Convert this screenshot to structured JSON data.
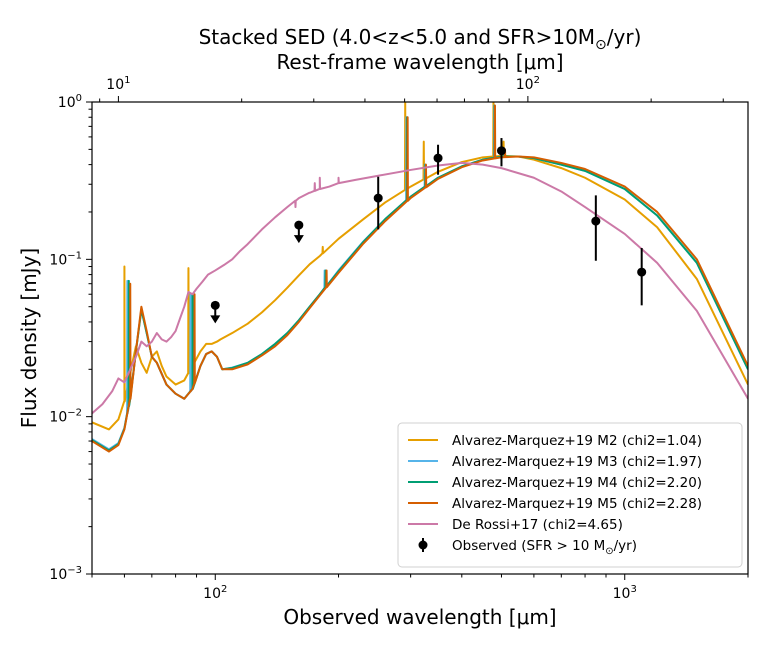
{
  "chart_data": {
    "type": "line",
    "title": "Stacked SED (4.0<z<5.0 and SFR>10M",
    "title_sub": "⊙",
    "title_end": "/yr)",
    "top_xlabel": "Rest-frame wavelength [μm]",
    "xlabel": "Observed wavelength [μm]",
    "ylabel": "Flux density [mJy]",
    "xscale": "log",
    "yscale": "log",
    "xlim": [
      50,
      2000
    ],
    "ylim": [
      0.001,
      1
    ],
    "top_xlim": [
      8.62,
      344.8
    ],
    "x_ticks": [
      {
        "value": 100,
        "base": "10",
        "exp": "2"
      },
      {
        "value": 1000,
        "base": "10",
        "exp": "3"
      }
    ],
    "top_ticks": [
      {
        "value": 10,
        "base": "10",
        "exp": "1"
      },
      {
        "value": 100,
        "base": "10",
        "exp": "2"
      }
    ],
    "y_ticks": [
      {
        "value": 0.001,
        "base": "10",
        "exp": "−3"
      },
      {
        "value": 0.01,
        "base": "10",
        "exp": "−2"
      },
      {
        "value": 0.1,
        "base": "10",
        "exp": "−1"
      },
      {
        "value": 1,
        "base": "10",
        "exp": "0"
      }
    ],
    "legend_position": "lower-right",
    "series": [
      {
        "name": "Alvarez-Marquez+19 M2 (chi2=1.04)",
        "color": "#E69F00",
        "points": [
          [
            50,
            0.0092
          ],
          [
            55,
            0.0083
          ],
          [
            58,
            0.0096
          ],
          [
            60,
            0.0125
          ],
          [
            62,
            0.019
          ],
          [
            64,
            0.028
          ],
          [
            66,
            0.022
          ],
          [
            68,
            0.019
          ],
          [
            70,
            0.024
          ],
          [
            72,
            0.026
          ],
          [
            74,
            0.021
          ],
          [
            76,
            0.018
          ],
          [
            80,
            0.016
          ],
          [
            84,
            0.017
          ],
          [
            88,
            0.021
          ],
          [
            92,
            0.026
          ],
          [
            95,
            0.029
          ],
          [
            98,
            0.029
          ],
          [
            101,
            0.03
          ],
          [
            103,
            0.031
          ],
          [
            110,
            0.034
          ],
          [
            120,
            0.039
          ],
          [
            130,
            0.046
          ],
          [
            140,
            0.055
          ],
          [
            150,
            0.066
          ],
          [
            160,
            0.079
          ],
          [
            170,
            0.093
          ],
          [
            180,
            0.105
          ],
          [
            200,
            0.135
          ],
          [
            230,
            0.18
          ],
          [
            260,
            0.23
          ],
          [
            300,
            0.29
          ],
          [
            350,
            0.36
          ],
          [
            400,
            0.415
          ],
          [
            450,
            0.445
          ],
          [
            500,
            0.455
          ],
          [
            550,
            0.45
          ],
          [
            600,
            0.43
          ],
          [
            700,
            0.38
          ],
          [
            800,
            0.33
          ],
          [
            1000,
            0.24
          ],
          [
            1200,
            0.16
          ],
          [
            1500,
            0.075
          ],
          [
            2000,
            0.016
          ]
        ],
        "spikes": [
          [
            60,
            0.09
          ],
          [
            86,
            0.088
          ],
          [
            183,
            0.12
          ],
          [
            291,
            1.0
          ],
          [
            323,
            0.56
          ],
          [
            478,
            1.0
          ],
          [
            506,
            0.56
          ]
        ]
      },
      {
        "name": "Alvarez-Marquez+19 M3 (chi2=1.97)",
        "color": "#56B4E9",
        "points": [
          [
            50,
            0.0072
          ],
          [
            55,
            0.0062
          ],
          [
            58,
            0.0068
          ],
          [
            60,
            0.0085
          ],
          [
            62,
            0.013
          ],
          [
            64,
            0.026
          ],
          [
            66,
            0.048
          ],
          [
            68,
            0.034
          ],
          [
            70,
            0.024
          ],
          [
            72,
            0.022
          ],
          [
            76,
            0.016
          ],
          [
            80,
            0.014
          ],
          [
            84,
            0.013
          ],
          [
            88,
            0.015
          ],
          [
            92,
            0.021
          ],
          [
            95,
            0.025
          ],
          [
            98,
            0.026
          ],
          [
            101,
            0.024
          ],
          [
            104,
            0.02
          ],
          [
            110,
            0.0205
          ],
          [
            120,
            0.022
          ],
          [
            130,
            0.025
          ],
          [
            140,
            0.029
          ],
          [
            150,
            0.034
          ],
          [
            160,
            0.041
          ],
          [
            170,
            0.05
          ],
          [
            180,
            0.06
          ],
          [
            200,
            0.085
          ],
          [
            230,
            0.13
          ],
          [
            260,
            0.18
          ],
          [
            300,
            0.25
          ],
          [
            350,
            0.33
          ],
          [
            400,
            0.39
          ],
          [
            450,
            0.43
          ],
          [
            500,
            0.45
          ],
          [
            550,
            0.45
          ],
          [
            600,
            0.44
          ],
          [
            700,
            0.4
          ],
          [
            800,
            0.365
          ],
          [
            1000,
            0.28
          ],
          [
            1200,
            0.19
          ],
          [
            1500,
            0.095
          ],
          [
            2000,
            0.02
          ]
        ],
        "spikes": [
          [
            61,
            0.073
          ],
          [
            87,
            0.06
          ],
          [
            185,
            0.085
          ],
          [
            293,
            0.8
          ],
          [
            325,
            0.4
          ],
          [
            480,
            0.95
          ],
          [
            508,
            0.5
          ]
        ]
      },
      {
        "name": "Alvarez-Marquez+19 M4 (chi2=2.20)",
        "color": "#009E73",
        "points": [
          [
            50,
            0.0071
          ],
          [
            55,
            0.0061
          ],
          [
            58,
            0.0067
          ],
          [
            60,
            0.0084
          ],
          [
            62,
            0.013
          ],
          [
            64,
            0.026
          ],
          [
            66,
            0.048
          ],
          [
            68,
            0.034
          ],
          [
            70,
            0.024
          ],
          [
            72,
            0.022
          ],
          [
            76,
            0.016
          ],
          [
            80,
            0.014
          ],
          [
            84,
            0.013
          ],
          [
            88,
            0.015
          ],
          [
            92,
            0.021
          ],
          [
            95,
            0.025
          ],
          [
            98,
            0.026
          ],
          [
            101,
            0.024
          ],
          [
            104,
            0.02
          ],
          [
            110,
            0.0204
          ],
          [
            120,
            0.022
          ],
          [
            130,
            0.025
          ],
          [
            140,
            0.029
          ],
          [
            150,
            0.034
          ],
          [
            160,
            0.041
          ],
          [
            170,
            0.05
          ],
          [
            180,
            0.06
          ],
          [
            200,
            0.084
          ],
          [
            230,
            0.129
          ],
          [
            260,
            0.18
          ],
          [
            300,
            0.25
          ],
          [
            350,
            0.33
          ],
          [
            400,
            0.39
          ],
          [
            450,
            0.43
          ],
          [
            500,
            0.45
          ],
          [
            550,
            0.45
          ],
          [
            600,
            0.44
          ],
          [
            700,
            0.4
          ],
          [
            800,
            0.365
          ],
          [
            1000,
            0.28
          ],
          [
            1200,
            0.19
          ],
          [
            1500,
            0.095
          ],
          [
            2000,
            0.02
          ]
        ],
        "spikes": [
          [
            61.5,
            0.073
          ],
          [
            88,
            0.06
          ],
          [
            186,
            0.085
          ],
          [
            294,
            0.8
          ],
          [
            326,
            0.4
          ],
          [
            481,
            0.95
          ],
          [
            509,
            0.5
          ]
        ]
      },
      {
        "name": "Alvarez-Marquez+19 M5 (chi2=2.28)",
        "color": "#D55E00",
        "points": [
          [
            50,
            0.007
          ],
          [
            55,
            0.006
          ],
          [
            58,
            0.0066
          ],
          [
            60,
            0.0083
          ],
          [
            62,
            0.013
          ],
          [
            64,
            0.026
          ],
          [
            66,
            0.05
          ],
          [
            68,
            0.035
          ],
          [
            70,
            0.024
          ],
          [
            72,
            0.022
          ],
          [
            76,
            0.016
          ],
          [
            80,
            0.014
          ],
          [
            84,
            0.013
          ],
          [
            88,
            0.015
          ],
          [
            92,
            0.021
          ],
          [
            95,
            0.025
          ],
          [
            98,
            0.026
          ],
          [
            101,
            0.024
          ],
          [
            104,
            0.02
          ],
          [
            110,
            0.02
          ],
          [
            120,
            0.0215
          ],
          [
            130,
            0.0245
          ],
          [
            140,
            0.028
          ],
          [
            150,
            0.033
          ],
          [
            160,
            0.04
          ],
          [
            170,
            0.049
          ],
          [
            180,
            0.059
          ],
          [
            200,
            0.082
          ],
          [
            230,
            0.126
          ],
          [
            260,
            0.175
          ],
          [
            300,
            0.245
          ],
          [
            350,
            0.325
          ],
          [
            400,
            0.385
          ],
          [
            450,
            0.425
          ],
          [
            500,
            0.445
          ],
          [
            550,
            0.45
          ],
          [
            600,
            0.445
          ],
          [
            700,
            0.41
          ],
          [
            800,
            0.375
          ],
          [
            1000,
            0.29
          ],
          [
            1200,
            0.2
          ],
          [
            1500,
            0.1
          ],
          [
            2000,
            0.021
          ]
        ],
        "spikes": [
          [
            62,
            0.07
          ],
          [
            89,
            0.06
          ],
          [
            187,
            0.085
          ],
          [
            295,
            0.8
          ],
          [
            327,
            0.4
          ],
          [
            482,
            0.95
          ],
          [
            510,
            0.5
          ]
        ]
      },
      {
        "name": "De Rossi+17 (chi2=4.65)",
        "color": "#CC79A7",
        "points": [
          [
            50,
            0.0105
          ],
          [
            53,
            0.012
          ],
          [
            56,
            0.0145
          ],
          [
            58,
            0.0175
          ],
          [
            60,
            0.0165
          ],
          [
            62,
            0.02
          ],
          [
            64,
            0.024
          ],
          [
            66,
            0.03
          ],
          [
            68,
            0.028
          ],
          [
            70,
            0.03
          ],
          [
            72,
            0.034
          ],
          [
            74,
            0.031
          ],
          [
            76,
            0.03
          ],
          [
            78,
            0.032
          ],
          [
            80,
            0.035
          ],
          [
            82,
            0.042
          ],
          [
            84,
            0.05
          ],
          [
            86,
            0.062
          ],
          [
            88,
            0.06
          ],
          [
            90,
            0.065
          ],
          [
            93,
            0.072
          ],
          [
            96,
            0.08
          ],
          [
            100,
            0.085
          ],
          [
            105,
            0.092
          ],
          [
            110,
            0.1
          ],
          [
            115,
            0.113
          ],
          [
            120,
            0.125
          ],
          [
            130,
            0.155
          ],
          [
            140,
            0.185
          ],
          [
            150,
            0.215
          ],
          [
            160,
            0.245
          ],
          [
            170,
            0.265
          ],
          [
            180,
            0.28
          ],
          [
            190,
            0.29
          ],
          [
            200,
            0.305
          ],
          [
            220,
            0.32
          ],
          [
            250,
            0.34
          ],
          [
            300,
            0.37
          ],
          [
            350,
            0.395
          ],
          [
            400,
            0.41
          ],
          [
            450,
            0.4
          ],
          [
            500,
            0.38
          ],
          [
            600,
            0.33
          ],
          [
            700,
            0.27
          ],
          [
            800,
            0.215
          ],
          [
            1000,
            0.145
          ],
          [
            1200,
            0.095
          ],
          [
            1500,
            0.047
          ],
          [
            2000,
            0.013
          ]
        ],
        "spikes": [
          [
            157,
            0.215
          ],
          [
            170,
            0.265
          ],
          [
            175,
            0.305
          ],
          [
            180,
            0.33
          ],
          [
            200,
            0.33
          ]
        ]
      }
    ],
    "observed": {
      "name": "Observed (SFR > 10 M",
      "name_sub": "⊙",
      "name_end": "/yr)",
      "color": "#000000",
      "points": [
        {
          "x": 100,
          "y": 0.051,
          "upper_limit": true
        },
        {
          "x": 160,
          "y": 0.165,
          "upper_limit": true
        },
        {
          "x": 250,
          "y": 0.245,
          "ylo": 0.155,
          "yhi": 0.335
        },
        {
          "x": 350,
          "y": 0.44,
          "ylo": 0.345,
          "yhi": 0.535
        },
        {
          "x": 500,
          "y": 0.49,
          "ylo": 0.39,
          "yhi": 0.59
        },
        {
          "x": 850,
          "y": 0.175,
          "ylo": 0.098,
          "yhi": 0.255
        },
        {
          "x": 1100,
          "y": 0.083,
          "ylo": 0.051,
          "yhi": 0.118
        }
      ]
    }
  }
}
